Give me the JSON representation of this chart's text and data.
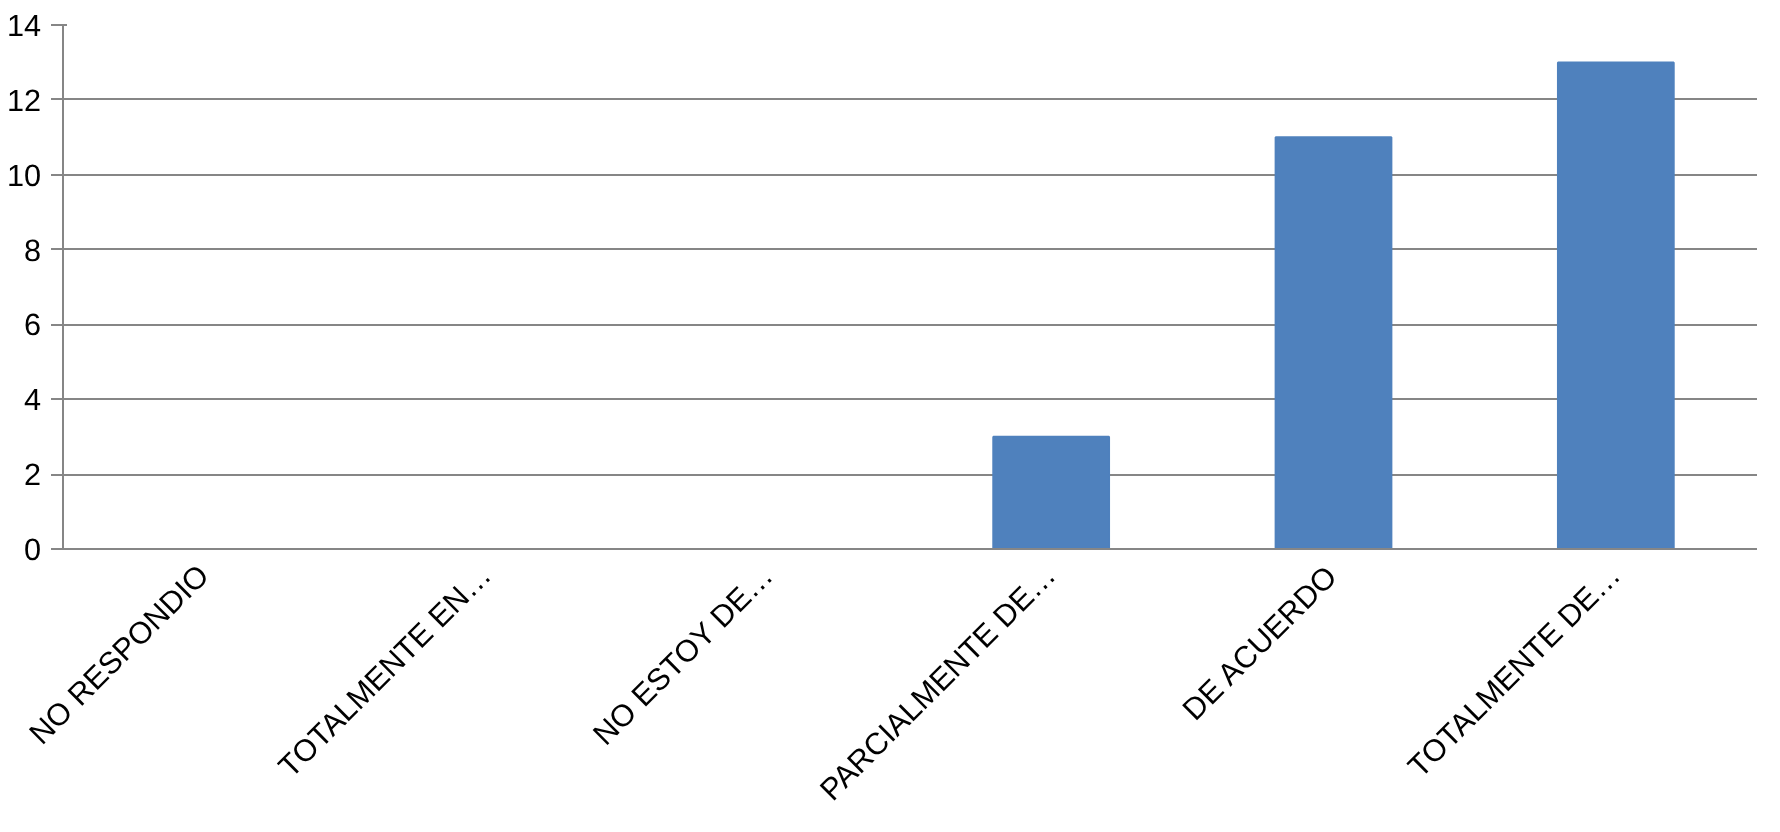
{
  "chart_data": {
    "type": "bar",
    "categories": [
      "NO RESPONDIO",
      "TOTALMENTE EN…",
      "NO ESTOY DE…",
      "PARCIALMENTE DE…",
      "DE ACUERDO",
      "TOTALMENTE DE…"
    ],
    "values": [
      0,
      0,
      0,
      3,
      11,
      13
    ],
    "color": "#4f81bd",
    "ylim": [
      0,
      14
    ],
    "yticks": [
      0,
      2,
      4,
      6,
      8,
      10,
      12,
      14
    ],
    "grid": "y"
  }
}
